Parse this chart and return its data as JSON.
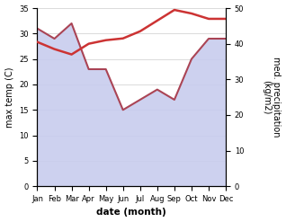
{
  "months": [
    "Jan",
    "Feb",
    "Mar",
    "Apr",
    "May",
    "Jun",
    "Jul",
    "Aug",
    "Sep",
    "Oct",
    "Nov",
    "Dec"
  ],
  "month_indices": [
    1,
    2,
    3,
    4,
    5,
    6,
    7,
    8,
    9,
    10,
    11,
    12
  ],
  "temperature": [
    31.0,
    29.0,
    32.0,
    23.0,
    23.0,
    15.0,
    17.0,
    19.0,
    17.0,
    25.0,
    29.0,
    29.0
  ],
  "precipitation": [
    40.5,
    38.5,
    37.0,
    40.0,
    41.0,
    41.5,
    43.5,
    46.5,
    49.5,
    48.5,
    47.0,
    47.0
  ],
  "temp_color": "#aa4455",
  "precip_color": "#cc3333",
  "fill_color": "#c8ccee",
  "fill_alpha": 0.9,
  "temp_ylim": [
    0,
    35
  ],
  "precip_ylim": [
    0,
    50
  ],
  "temp_yticks": [
    0,
    5,
    10,
    15,
    20,
    25,
    30,
    35
  ],
  "precip_yticks": [
    0,
    10,
    20,
    30,
    40,
    50
  ],
  "xlabel": "date (month)",
  "ylabel_left": "max temp (C)",
  "ylabel_right": "med. precipitation\n(kg/m2)",
  "bg_color": "#ffffff",
  "grid_color": "#cccccc"
}
